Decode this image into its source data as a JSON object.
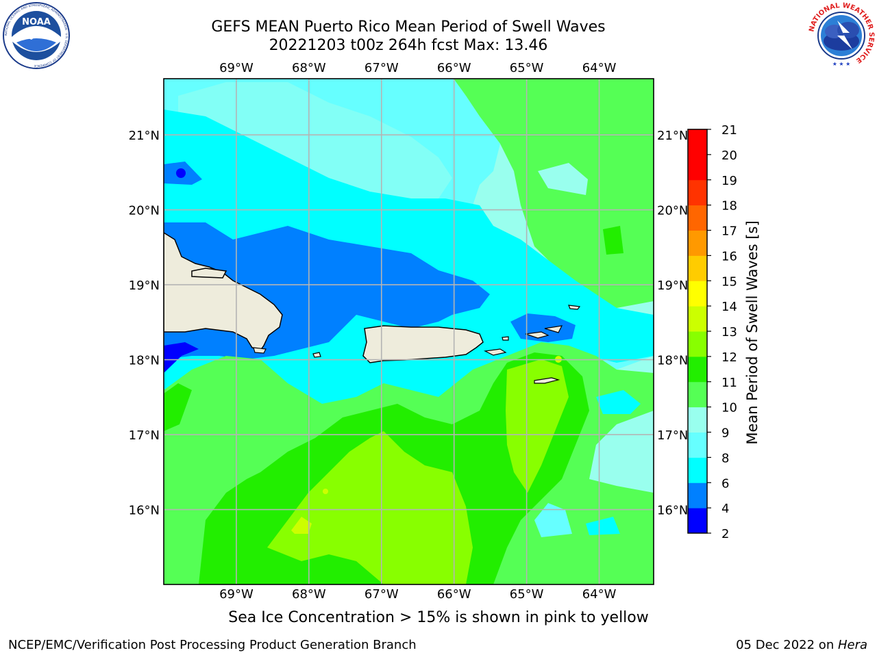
{
  "header": {
    "title_line1": "GEFS MEAN Puerto Rico Mean Period of Swell Waves",
    "title_line2": "20221203 t00z 264h fcst   Max: 13.46"
  },
  "logos": {
    "left": {
      "name": "noaa-logo",
      "text": "NOAA",
      "ring_text": "NATIONAL OCEANIC AND ATMOSPHERIC ADMINISTRATION · U.S. DEPARTMENT OF COMMERCE"
    },
    "right": {
      "name": "nws-logo",
      "ring_text": "NATIONAL WEATHER SERVICE"
    }
  },
  "map": {
    "region": "Puerto Rico",
    "lon_labels": [
      "69°W",
      "68°W",
      "67°W",
      "66°W",
      "65°W",
      "64°W"
    ],
    "lon_values": [
      -69,
      -68,
      -67,
      -66,
      -65,
      -64
    ],
    "lat_labels": [
      "21°N",
      "20°N",
      "19°N",
      "18°N",
      "17°N",
      "16°N"
    ],
    "lat_values": [
      21,
      20,
      19,
      18,
      17,
      16
    ],
    "lon_range": [
      -70.0,
      -63.25
    ],
    "lat_range": [
      15.0,
      21.75
    ],
    "field": "Mean Period of Swell Waves",
    "max_value": 13.46,
    "land_color": "#eeecdc",
    "grid_color": "#b4b4b4"
  },
  "colorbar": {
    "label": "Mean Period of Swell Waves [s]",
    "ticks": [
      "2",
      "4",
      "6",
      "8",
      "9",
      "10",
      "11",
      "12",
      "13",
      "14",
      "15",
      "16",
      "17",
      "18",
      "19",
      "20",
      "21"
    ],
    "levels": [
      2,
      4,
      6,
      8,
      9,
      10,
      11,
      12,
      13,
      14,
      15,
      16,
      17,
      18,
      19,
      20,
      21
    ],
    "colors": [
      "#0000ff",
      "#0080ff",
      "#00ffff",
      "#66ffff",
      "#99ffee",
      "#55ff55",
      "#22ee00",
      "#88ff00",
      "#ccff00",
      "#ffff00",
      "#ffcc00",
      "#ff9900",
      "#ff6600",
      "#ff3300",
      "#ff0000",
      "#ff0000"
    ]
  },
  "caption": "Sea Ice Concentration > 15% is shown in pink to yellow",
  "footer": {
    "left": "NCEP/EMC/Verification Post Processing Product Generation Branch",
    "date": "05 Dec 2022 on ",
    "machine": "Hera"
  }
}
